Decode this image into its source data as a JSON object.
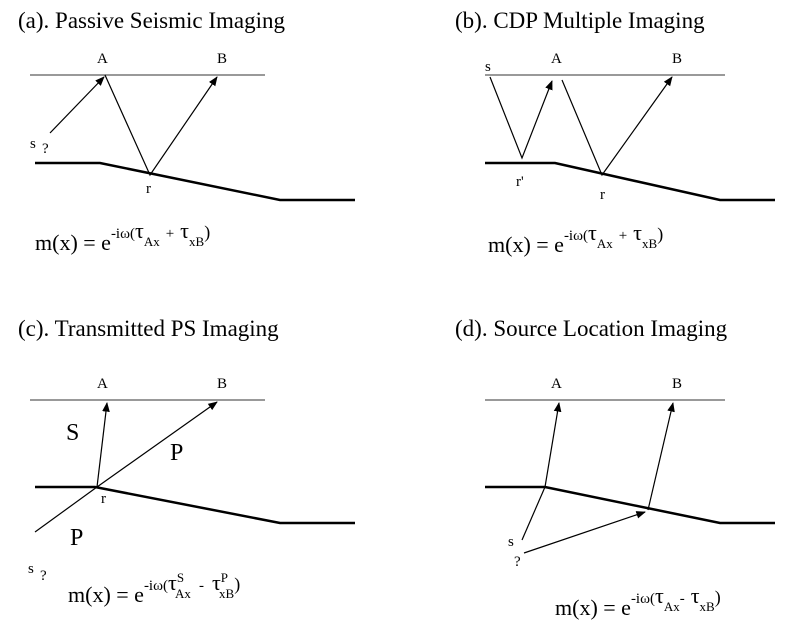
{
  "panels": [
    {
      "title": "(a).  Passive Seismic Imaging",
      "labels": {
        "A": "A",
        "B": "B",
        "s": "s",
        "q": "?",
        "r": "r"
      },
      "formula": {
        "lhs": "m(x) = e",
        "exp": "-iω(",
        "t1": "τ",
        "s1": "Ax",
        "op": "+",
        "t2": "τ",
        "s2": "xB",
        "close": ")"
      }
    },
    {
      "title": "(b). CDP Multiple Imaging",
      "labels": {
        "A": "A",
        "B": "B",
        "s": "s",
        "r1": "r'",
        "r": "r"
      },
      "formula": {
        "lhs": "m(x) = e",
        "exp": "-iω(",
        "t1": "τ",
        "s1": "Ax",
        "op": "+",
        "t2": "τ",
        "s2": "xB",
        "close": ")"
      }
    },
    {
      "title": "(c).  Transmitted PS Imaging",
      "labels": {
        "A": "A",
        "B": "B",
        "S": "S",
        "P1": "P",
        "P2": "P",
        "r": "r",
        "s": "s",
        "q": "?"
      },
      "formula": {
        "lhs": "m(x) = e",
        "exp": "-iω(",
        "t1": "τ",
        "sup1": "S",
        "s1": "Ax",
        "op": "-",
        "t2": "τ",
        "sup2": "P",
        "s2": "xB",
        "close": ")"
      }
    },
    {
      "title": "(d). Source Location Imaging",
      "labels": {
        "A": "A",
        "B": "B",
        "s": "s",
        "q": "?"
      },
      "formula": {
        "lhs": "m(x) = e",
        "exp": "-iω(",
        "t1": "τ",
        "s1": "Ax",
        "op": "-",
        "t2": "τ",
        "s2": "xB",
        "close": ")"
      }
    }
  ]
}
